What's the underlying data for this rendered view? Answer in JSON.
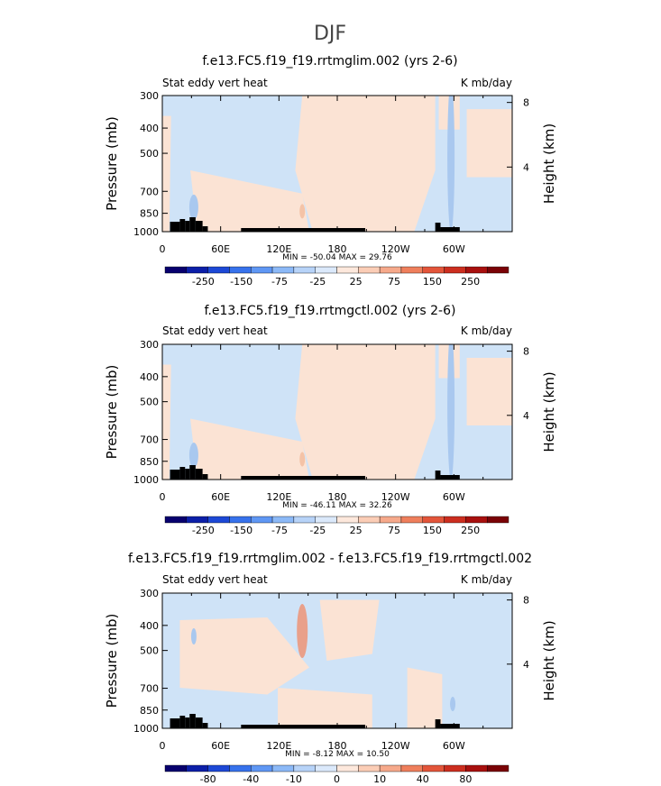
{
  "figure_title": "DJF",
  "colors": {
    "neg_light": "#cfe3f7",
    "neg_mid": "#a9c8ef",
    "pos_light": "#fbe3d4",
    "pos_mid": "#f4c3a7",
    "pos_strong": "#e9a08a",
    "topography": "#000000"
  },
  "chart_data": [
    {
      "type": "heatmap",
      "title": "f.e13.FC5.f19_f19.rrtmglim.002 (yrs 2-6)",
      "left_label": "Stat eddy vert heat",
      "right_label": "K mb/day",
      "ylabel": "Pressure (mb)",
      "y2label": "Height (km)",
      "x_ticks": [
        "0",
        "60E",
        "120E",
        "180",
        "120W",
        "60W"
      ],
      "x_values": [
        0,
        60,
        120,
        180,
        240,
        300
      ],
      "xlim": [
        0,
        360
      ],
      "y_ticks": [
        "300",
        "400",
        "500",
        "700",
        "850",
        "1000"
      ],
      "y_values": [
        300,
        400,
        500,
        700,
        850,
        1000
      ],
      "ylim": [
        300,
        1000
      ],
      "y2_ticks": [
        "8",
        "4"
      ],
      "y2_values": [
        8,
        4
      ],
      "stats": "MIN = -50.04   MAX =  29.76",
      "colorbar_labels": [
        "-250",
        "-150",
        "-75",
        "-25",
        "25",
        "75",
        "150",
        "250"
      ]
    },
    {
      "type": "heatmap",
      "title": "f.e13.FC5.f19_f19.rrtmgctl.002 (yrs 2-6)",
      "left_label": "Stat eddy vert heat",
      "right_label": "K mb/day",
      "ylabel": "Pressure (mb)",
      "y2label": "Height (km)",
      "x_ticks": [
        "0",
        "60E",
        "120E",
        "180",
        "120W",
        "60W"
      ],
      "x_values": [
        0,
        60,
        120,
        180,
        240,
        300
      ],
      "xlim": [
        0,
        360
      ],
      "y_ticks": [
        "300",
        "400",
        "500",
        "700",
        "850",
        "1000"
      ],
      "y_values": [
        300,
        400,
        500,
        700,
        850,
        1000
      ],
      "ylim": [
        300,
        1000
      ],
      "y2_ticks": [
        "8",
        "4"
      ],
      "y2_values": [
        8,
        4
      ],
      "stats": "MIN = -46.11   MAX =  32.26",
      "colorbar_labels": [
        "-250",
        "-150",
        "-75",
        "-25",
        "25",
        "75",
        "150",
        "250"
      ]
    },
    {
      "type": "heatmap",
      "title": "f.e13.FC5.f19_f19.rrtmglim.002 - f.e13.FC5.f19_f19.rrtmgctl.002",
      "left_label": "Stat eddy vert heat",
      "right_label": "K mb/day",
      "ylabel": "Pressure (mb)",
      "y2label": "Height (km)",
      "x_ticks": [
        "0",
        "60E",
        "120E",
        "180",
        "120W",
        "60W"
      ],
      "x_values": [
        0,
        60,
        120,
        180,
        240,
        300
      ],
      "xlim": [
        0,
        360
      ],
      "y_ticks": [
        "300",
        "400",
        "500",
        "700",
        "850",
        "1000"
      ],
      "y_values": [
        300,
        400,
        500,
        700,
        850,
        1000
      ],
      "ylim": [
        300,
        1000
      ],
      "y2_ticks": [
        "8",
        "4"
      ],
      "y2_values": [
        8,
        4
      ],
      "stats": "MIN = -8.12   MAX =  10.50",
      "colorbar_labels": [
        "-80",
        "-40",
        "-10",
        "0",
        "10",
        "40",
        "80"
      ]
    }
  ],
  "colorbar_colors": [
    "#08006e",
    "#0c1fa8",
    "#1d48d6",
    "#3772ec",
    "#5f97f4",
    "#8cb9f7",
    "#b7d3f8",
    "#dbe9fb",
    "#fde8dc",
    "#fbcdb6",
    "#f6a98b",
    "#ef7f5c",
    "#e3553a",
    "#cc2e1f",
    "#a8100e",
    "#7a0206"
  ]
}
